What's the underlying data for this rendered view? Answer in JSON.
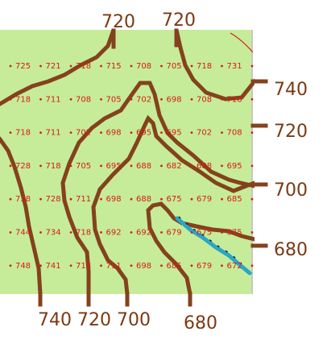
{
  "colors": {
    "land": "#c6ec9a",
    "contour": "#84421c",
    "label": "#7a3a12",
    "elevation_text": "#d81b14",
    "stream": "#2aa6c8",
    "border": "#8c8c8c"
  },
  "contour_labels": {
    "top": [
      "720",
      "720"
    ],
    "right": [
      "740",
      "720",
      "700",
      "680"
    ],
    "bottom": [
      "740",
      "720",
      "700",
      "680"
    ]
  },
  "elevation_grid": [
    [
      "725",
      "721",
      "718",
      "715",
      "708",
      "705",
      "718",
      "731",
      "7"
    ],
    [
      "718",
      "711",
      "708",
      "705",
      "702",
      "698",
      "708",
      "718",
      "7"
    ],
    [
      "718",
      "711",
      "702",
      "698",
      "695",
      "695",
      "702",
      "708",
      "7"
    ],
    [
      "728",
      "718",
      "705",
      "695",
      "688",
      "682",
      "688",
      "695",
      "7"
    ],
    [
      "738",
      "728",
      "711",
      "698",
      "688",
      "675",
      "679",
      "685",
      "6"
    ],
    [
      "744",
      "734",
      "718",
      "692",
      "692",
      "679",
      "675",
      "675",
      "6"
    ],
    [
      "748",
      "741",
      "718",
      "711",
      "698",
      "685",
      "679",
      "672",
      "6"
    ]
  ]
}
